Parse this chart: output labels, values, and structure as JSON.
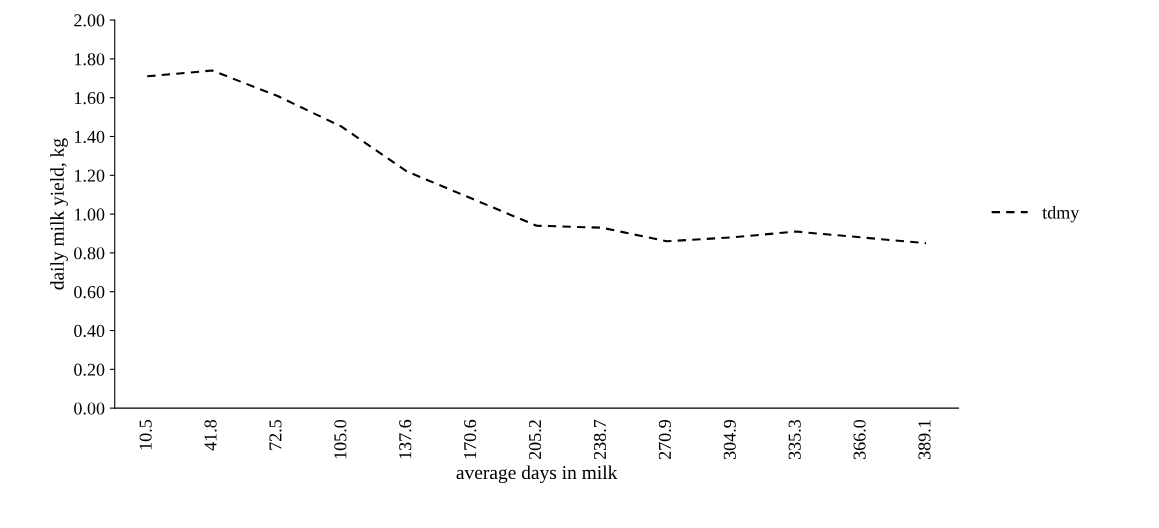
{
  "chart_data": {
    "type": "line",
    "xlabel": "average days in milk",
    "ylabel": "daily milk yield, kg",
    "categories": [
      "10.5",
      "41.8",
      "72.5",
      "105.0",
      "137.6",
      "170.6",
      "205.2",
      "238.7",
      "270.9",
      "304.9",
      "335.3",
      "366.0",
      "389.1"
    ],
    "series": [
      {
        "name": "tdmy",
        "color": "#000000",
        "values": [
          1.71,
          1.74,
          1.61,
          1.45,
          1.22,
          1.08,
          0.94,
          0.93,
          0.86,
          0.88,
          0.91,
          0.88,
          0.85
        ]
      }
    ],
    "ylim": [
      0,
      2
    ],
    "yticks": [
      {
        "value": 0,
        "label": "0.00"
      },
      {
        "value": 0.2,
        "label": "0.20"
      },
      {
        "value": 0.4,
        "label": "0.40"
      },
      {
        "value": 0.6,
        "label": "0.60"
      },
      {
        "value": 0.8,
        "label": "0.80"
      },
      {
        "value": 1.0,
        "label": "1.00"
      },
      {
        "value": 1.2,
        "label": "1.20"
      },
      {
        "value": 1.4,
        "label": "1.40"
      },
      {
        "value": 1.6,
        "label": "1.60"
      },
      {
        "value": 1.8,
        "label": "1.80"
      },
      {
        "value": 2.0,
        "label": "2.00"
      }
    ],
    "line_style": "dashed",
    "legend": "right",
    "grid": false
  }
}
